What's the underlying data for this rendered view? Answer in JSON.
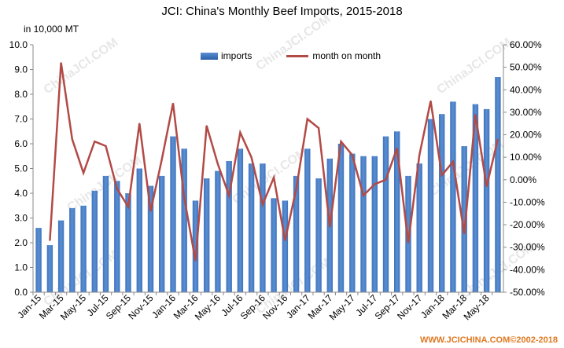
{
  "chart_data": {
    "type": "bar+line",
    "title": "JCI: China's Monthly Beef Imports, 2015-2018",
    "y_unit_label": "in 10,000  MT",
    "ylim": [
      0,
      10
    ],
    "y_ticks": [
      "0.0",
      "1.0",
      "2.0",
      "3.0",
      "4.0",
      "5.0",
      "6.0",
      "7.0",
      "8.0",
      "9.0",
      "10.0"
    ],
    "y2lim": [
      -50,
      60
    ],
    "y2_ticks": [
      "-50.00%",
      "-40.00%",
      "-30.00%",
      "-20.00%",
      "-10.00%",
      "0.00%",
      "10.00%",
      "20.00%",
      "30.00%",
      "40.00%",
      "50.00%",
      "60.00%"
    ],
    "categories": [
      "Jan-15",
      "Feb-15",
      "Mar-15",
      "Apr-15",
      "May-15",
      "Jun-15",
      "Jul-15",
      "Aug-15",
      "Sep-15",
      "Oct-15",
      "Nov-15",
      "Dec-15",
      "Jan-16",
      "Feb-16",
      "Mar-16",
      "Apr-16",
      "May-16",
      "Jun-16",
      "Jul-16",
      "Aug-16",
      "Sep-16",
      "Oct-16",
      "Nov-16",
      "Dec-16",
      "Jan-17",
      "Feb-17",
      "Mar-17",
      "Apr-17",
      "May-17",
      "Jun-17",
      "Jul-17",
      "Aug-17",
      "Sep-17",
      "Oct-17",
      "Nov-17",
      "Dec-17",
      "Jan-18",
      "Feb-18",
      "Mar-18",
      "Apr-18",
      "May-18",
      "Jun-18"
    ],
    "x_tick_labels": [
      "Jan-15",
      "Mar-15",
      "May-15",
      "Jul-15",
      "Sep-15",
      "Nov-15",
      "Jan-16",
      "Mar-16",
      "May-16",
      "Jul-16",
      "Sep-16",
      "Nov-16",
      "Jan-17",
      "Mar-17",
      "May-17",
      "Jul-17",
      "Sep-17",
      "Nov-17",
      "Jan-18",
      "Mar-18",
      "May-18"
    ],
    "series": [
      {
        "name": "imports",
        "type": "bar",
        "axis": "left",
        "values": [
          2.6,
          1.9,
          2.9,
          3.4,
          3.5,
          4.1,
          4.7,
          4.5,
          4.0,
          5.0,
          4.3,
          4.7,
          6.3,
          5.8,
          3.7,
          4.6,
          4.9,
          5.3,
          5.8,
          5.2,
          5.2,
          3.8,
          3.7,
          4.7,
          5.8,
          4.6,
          5.4,
          6.0,
          5.6,
          5.5,
          5.5,
          6.3,
          6.5,
          4.7,
          5.2,
          7.0,
          7.2,
          7.7,
          5.9,
          7.6,
          7.4,
          8.7
        ]
      },
      {
        "name": "month on month",
        "type": "line",
        "axis": "right",
        "values": [
          null,
          -27,
          52,
          18,
          3,
          17,
          15,
          -4,
          -12,
          25,
          -14,
          9,
          34,
          -8,
          -36,
          24,
          7,
          -7,
          21,
          10,
          -11,
          1,
          -27,
          -4,
          27,
          23,
          -21,
          17,
          11,
          -7,
          -2,
          0,
          14,
          -28,
          11,
          35,
          2,
          8,
          -24,
          29,
          -3,
          18
        ]
      }
    ],
    "legend": {
      "placement": "top-center",
      "bar_label": "imports",
      "line_label": "month on month"
    },
    "colors": {
      "bar": "#3e74bf",
      "bar_light": "#5b8fd1",
      "line": "#b24a46",
      "axis": "#888888"
    }
  },
  "footer": "WWW.JCICHINA.COM©2002-2018"
}
